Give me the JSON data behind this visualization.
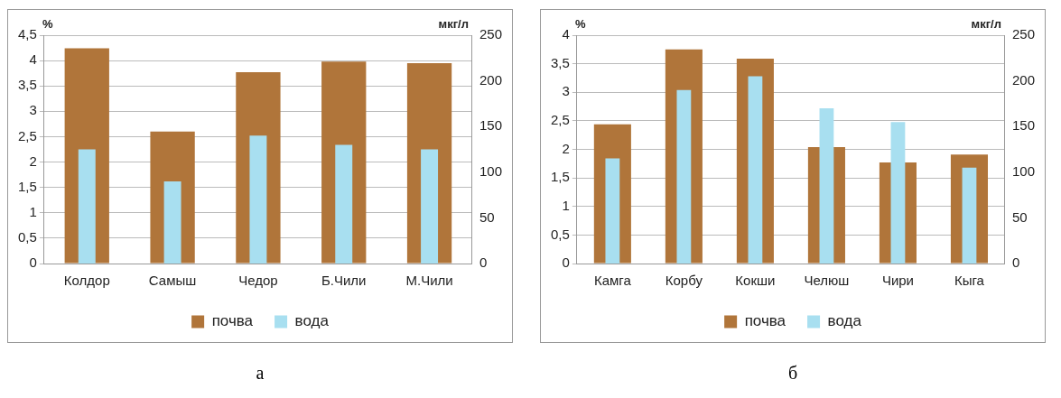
{
  "chart_data": [
    {
      "type": "bar",
      "categories": [
        "Колдор",
        "Самыш",
        "Чедор",
        "Б.Чили",
        "М.Чили"
      ],
      "ylabel": "%",
      "y2label": "мкг/л",
      "series": [
        {
          "name": "почва",
          "color": "#b0753a",
          "values": [
            4.24,
            2.6,
            3.77,
            3.98,
            3.95
          ]
        },
        {
          "name": "вода",
          "color": "#a8dff0",
          "axis": "y2",
          "values": [
            125,
            90,
            140,
            130,
            125
          ]
        }
      ],
      "ylim": [
        0,
        4.5
      ],
      "yticks": [
        0,
        {
          "value": 0.5,
          "label": "0,5"
        },
        1,
        {
          "value": 1.5,
          "label": "1,5"
        },
        2,
        {
          "value": 2.5,
          "label": "2,5"
        },
        3,
        {
          "value": 3.5,
          "label": "3,5"
        },
        4,
        {
          "value": 4.5,
          "label": "4,5"
        }
      ],
      "y2lim": [
        0,
        250
      ],
      "y2ticks": [
        0,
        50,
        100,
        150,
        200,
        250
      ],
      "grid": "y",
      "legend": "bottom",
      "annotations": [
        "а"
      ]
    },
    {
      "type": "bar",
      "categories": [
        "Камга",
        "Корбу",
        "Кокши",
        "Челюш",
        "Чири",
        "Кыга"
      ],
      "ylabel": "%",
      "y2label": "мкг/л",
      "series": [
        {
          "name": "почва",
          "color": "#b0753a",
          "values": [
            2.44,
            3.75,
            3.59,
            2.04,
            1.77,
            1.91
          ]
        },
        {
          "name": "вода",
          "color": "#a8dff0",
          "axis": "y2",
          "values": [
            115,
            190,
            205,
            170,
            155,
            105
          ]
        }
      ],
      "ylim": [
        0,
        4
      ],
      "yticks": [
        0,
        {
          "value": 0.5,
          "label": "0,5"
        },
        1,
        {
          "value": 1.5,
          "label": "1,5"
        },
        2,
        {
          "value": 2.5,
          "label": "2,5"
        },
        3,
        {
          "value": 3.5,
          "label": "3,5"
        },
        4
      ],
      "y2lim": [
        0,
        250
      ],
      "y2ticks": [
        0,
        50,
        100,
        150,
        200,
        250
      ],
      "grid": "y",
      "legend": "bottom",
      "annotations": [
        "б"
      ]
    }
  ]
}
